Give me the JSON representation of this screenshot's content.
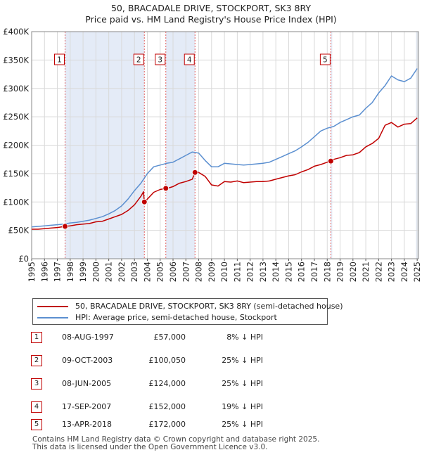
{
  "title": {
    "line1": "50, BRACADALE DRIVE, STOCKPORT, SK3 8RY",
    "line2": "Price paid vs. HM Land Registry's House Price Index (HPI)"
  },
  "chart_data": {
    "type": "line",
    "title": "Price paid vs. HM Land Registry's House Price Index (HPI)",
    "xlabel": "",
    "ylabel": "",
    "xlim": [
      1995.0,
      2025.1
    ],
    "ylim": [
      0,
      400000
    ],
    "yticks": [
      0,
      50000,
      100000,
      150000,
      200000,
      250000,
      300000,
      350000,
      400000
    ],
    "ytick_labels": [
      "£0",
      "£50K",
      "£100K",
      "£150K",
      "£200K",
      "£250K",
      "£300K",
      "£350K",
      "£400K"
    ],
    "xticks": [
      1995,
      1996,
      1997,
      1998,
      1999,
      2000,
      2001,
      2002,
      2003,
      2004,
      2005,
      2006,
      2007,
      2008,
      2009,
      2010,
      2011,
      2012,
      2013,
      2014,
      2015,
      2016,
      2017,
      2018,
      2019,
      2020,
      2021,
      2022,
      2023,
      2024,
      2025
    ],
    "grid": true,
    "series": [
      {
        "name": "50, BRACADALE DRIVE, STOCKPORT, SK3 8RY (semi-detached house)",
        "color": "#c00000",
        "x": [
          1995.0,
          1995.5,
          1996.0,
          1996.5,
          1997.0,
          1997.6,
          1998.0,
          1998.5,
          1999.0,
          1999.5,
          2000.0,
          2000.5,
          2001.0,
          2001.5,
          2002.0,
          2002.5,
          2003.0,
          2003.5,
          2003.7,
          2003.77,
          2004.0,
          2004.5,
          2005.0,
          2005.44,
          2005.7,
          2006.0,
          2006.5,
          2007.0,
          2007.5,
          2007.71,
          2008.0,
          2008.5,
          2009.0,
          2009.5,
          2010.0,
          2010.5,
          2011.0,
          2011.5,
          2012.0,
          2012.5,
          2013.0,
          2013.5,
          2014.0,
          2014.5,
          2015.0,
          2015.5,
          2016.0,
          2016.5,
          2017.0,
          2017.5,
          2018.0,
          2018.28,
          2018.5,
          2019.0,
          2019.5,
          2020.0,
          2020.5,
          2021.0,
          2021.5,
          2022.0,
          2022.5,
          2023.0,
          2023.5,
          2024.0,
          2024.5,
          2025.0
        ],
        "values": [
          52000,
          52000,
          53000,
          54000,
          55000,
          57000,
          58000,
          60000,
          61000,
          62000,
          65000,
          66000,
          70000,
          74000,
          78000,
          85000,
          95000,
          110000,
          118000,
          100050,
          105000,
          117000,
          122000,
          124000,
          125000,
          127000,
          133000,
          136000,
          140000,
          152000,
          152000,
          145000,
          130000,
          128000,
          136000,
          135000,
          137000,
          134000,
          135000,
          136000,
          136000,
          137000,
          140000,
          143000,
          146000,
          148000,
          153000,
          157000,
          163000,
          166000,
          170000,
          172000,
          175000,
          178000,
          182000,
          183000,
          187000,
          197000,
          203000,
          212000,
          235000,
          240000,
          232000,
          237000,
          238000,
          248000
        ]
      },
      {
        "name": "HPI: Average price, semi-detached house, Stockport",
        "color": "#5b8fd0",
        "x": [
          1995.0,
          1995.5,
          1996.0,
          1996.5,
          1997.0,
          1997.5,
          1998.0,
          1998.5,
          1999.0,
          1999.5,
          2000.0,
          2000.5,
          2001.0,
          2001.5,
          2002.0,
          2002.5,
          2003.0,
          2003.5,
          2004.0,
          2004.5,
          2005.0,
          2005.5,
          2006.0,
          2006.5,
          2007.0,
          2007.5,
          2008.0,
          2008.5,
          2009.0,
          2009.5,
          2010.0,
          2010.5,
          2011.0,
          2011.5,
          2012.0,
          2012.5,
          2013.0,
          2013.5,
          2014.0,
          2014.5,
          2015.0,
          2015.5,
          2016.0,
          2016.5,
          2017.0,
          2017.5,
          2018.0,
          2018.5,
          2019.0,
          2019.5,
          2020.0,
          2020.5,
          2021.0,
          2021.5,
          2022.0,
          2022.5,
          2023.0,
          2023.5,
          2024.0,
          2024.5,
          2025.0
        ],
        "values": [
          56000,
          57000,
          58000,
          59000,
          60000,
          61000,
          63000,
          64000,
          66000,
          68000,
          71000,
          74000,
          79000,
          85000,
          93000,
          105000,
          120000,
          133000,
          150000,
          162000,
          165000,
          168000,
          170000,
          176000,
          182000,
          188000,
          186000,
          173000,
          162000,
          162000,
          168000,
          167000,
          166000,
          165000,
          166000,
          167000,
          168000,
          170000,
          175000,
          180000,
          185000,
          190000,
          197000,
          205000,
          215000,
          225000,
          230000,
          233000,
          240000,
          245000,
          250000,
          253000,
          265000,
          275000,
          292000,
          305000,
          322000,
          315000,
          312000,
          318000,
          335000
        ]
      }
    ],
    "transactions": [
      {
        "num": "1",
        "date": "08-AUG-1997",
        "x": 1997.6,
        "price": "£57,000",
        "value": 57000,
        "hpi": "8% ↓ HPI"
      },
      {
        "num": "2",
        "date": "09-OCT-2003",
        "x": 2003.77,
        "price": "£100,050",
        "value": 100050,
        "hpi": "25% ↓ HPI"
      },
      {
        "num": "3",
        "date": "08-JUN-2005",
        "x": 2005.44,
        "price": "£124,000",
        "value": 124000,
        "hpi": "25% ↓ HPI"
      },
      {
        "num": "4",
        "date": "17-SEP-2007",
        "x": 2007.71,
        "price": "£152,000",
        "value": 152000,
        "hpi": "19% ↓ HPI"
      },
      {
        "num": "5",
        "date": "13-APR-2018",
        "x": 2018.28,
        "price": "£172,000",
        "value": 172000,
        "hpi": "25% ↓ HPI"
      }
    ],
    "shaded_ranges": [
      [
        1997.6,
        2003.77
      ],
      [
        2005.44,
        2007.71
      ],
      [
        2018.28,
        2018.28
      ],
      [
        2024.9,
        2025.1
      ]
    ]
  },
  "legend": {
    "items": [
      {
        "label": "50, BRACADALE DRIVE, STOCKPORT, SK3 8RY (semi-detached house)",
        "color": "#c00000"
      },
      {
        "label": "HPI: Average price, semi-detached house, Stockport",
        "color": "#5b8fd0"
      }
    ]
  },
  "footer": {
    "line1": "Contains HM Land Registry data © Crown copyright and database right 2025.",
    "line2": "This data is licensed under the Open Government Licence v3.0."
  }
}
